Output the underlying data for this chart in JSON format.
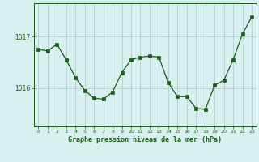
{
  "x": [
    0,
    1,
    2,
    3,
    4,
    5,
    6,
    7,
    8,
    9,
    10,
    11,
    12,
    13,
    14,
    15,
    16,
    17,
    18,
    19,
    20,
    21,
    22,
    23
  ],
  "y": [
    1016.75,
    1016.72,
    1016.85,
    1016.55,
    1016.2,
    1015.95,
    1015.8,
    1015.78,
    1015.92,
    1016.3,
    1016.55,
    1016.6,
    1016.62,
    1016.6,
    1016.1,
    1015.83,
    1015.83,
    1015.6,
    1015.58,
    1016.05,
    1016.15,
    1016.55,
    1017.05,
    1017.38
  ],
  "line_color": "#1a5c1a",
  "marker": "s",
  "marker_size": 2.2,
  "bg_color": "#d8f0f0",
  "grid_color": "#b8d4d4",
  "xlabel": "Graphe pression niveau de la mer (hPa)",
  "xlabel_color": "#1a5c1a",
  "tick_color": "#1a5c1a",
  "yticks": [
    1016,
    1017
  ],
  "ylim": [
    1015.25,
    1017.65
  ],
  "xlim": [
    -0.5,
    23.5
  ],
  "xtick_labels": [
    "0",
    "1",
    "2",
    "3",
    "4",
    "5",
    "6",
    "7",
    "8",
    "9",
    "10",
    "11",
    "12",
    "13",
    "14",
    "15",
    "16",
    "17",
    "18",
    "19",
    "20",
    "21",
    "22",
    "23"
  ]
}
